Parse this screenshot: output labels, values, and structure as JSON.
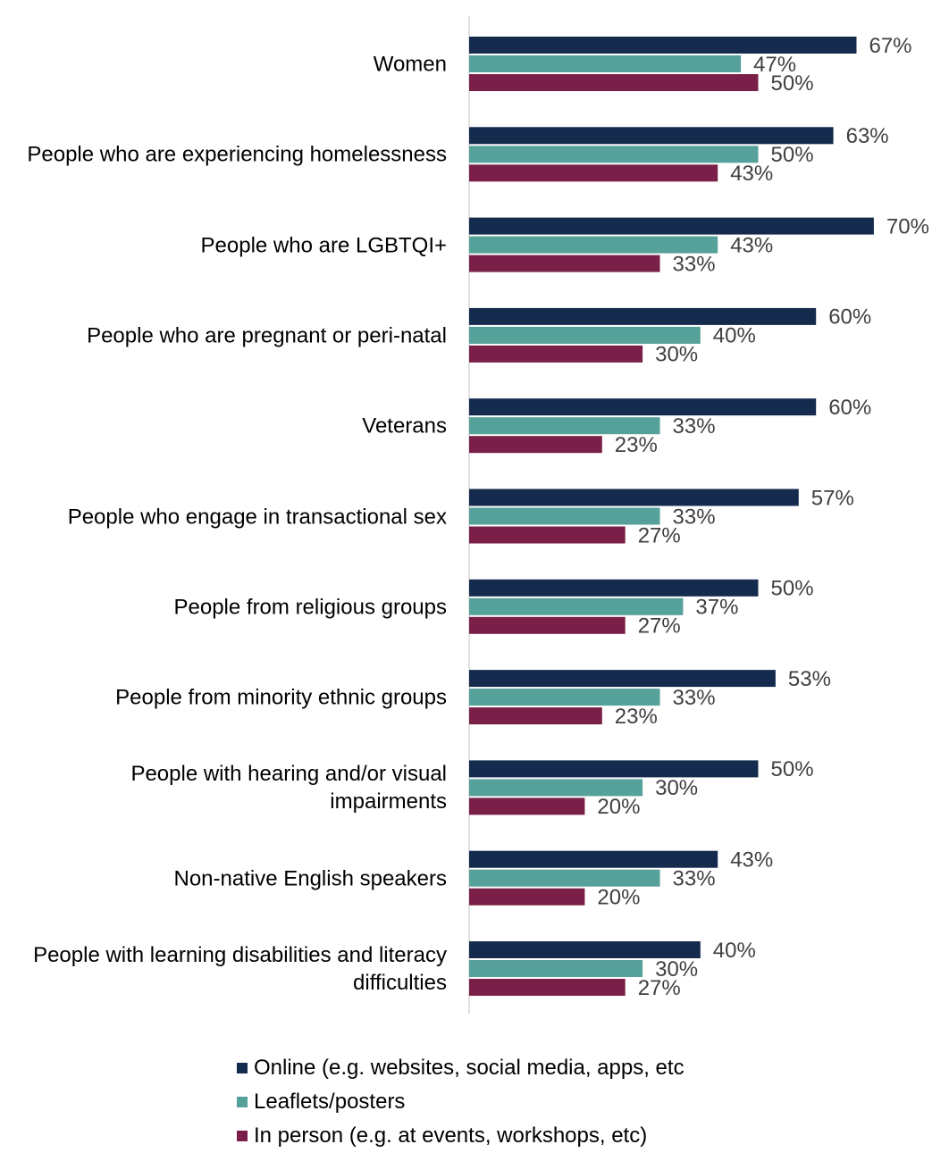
{
  "chart_data": {
    "type": "bar",
    "orientation": "horizontal",
    "categories": [
      "Women",
      "People who are experiencing homelessness",
      "People who are LGBTQI+",
      "People who are pregnant or peri-natal",
      "Veterans",
      "People who engage in transactional sex",
      "People from religious groups",
      "People from minority ethnic groups",
      "People  with hearing and/or visual impairments",
      "Non-native English speakers",
      "People with learning disabilities and literacy difficulties"
    ],
    "series": [
      {
        "name": "Online (e.g. websites, social media, apps, etc",
        "color": "#152b4e",
        "values": [
          67,
          63,
          70,
          60,
          60,
          57,
          50,
          53,
          50,
          43,
          40
        ],
        "value_labels": [
          "67%",
          "63%",
          "70%",
          "60%",
          "60%",
          "57%",
          "50%",
          "53%",
          "50%",
          "43%",
          "40%"
        ]
      },
      {
        "name": "Leaflets/posters",
        "color": "#56a19a",
        "values": [
          47,
          50,
          43,
          40,
          33,
          33,
          37,
          33,
          30,
          33,
          30
        ],
        "value_labels": [
          "47%",
          "50%",
          "43%",
          "40%",
          "33%",
          "33%",
          "37%",
          "33%",
          "30%",
          "33%",
          "30%"
        ]
      },
      {
        "name": "In person (e.g. at events, workshops, etc)",
        "color": "#7a2048",
        "values": [
          50,
          43,
          33,
          30,
          23,
          27,
          27,
          23,
          20,
          20,
          27
        ],
        "value_labels": [
          "50%",
          "43%",
          "33%",
          "30%",
          "23%",
          "27%",
          "27%",
          "23%",
          "20%",
          "20%",
          "27%"
        ]
      }
    ]
  }
}
